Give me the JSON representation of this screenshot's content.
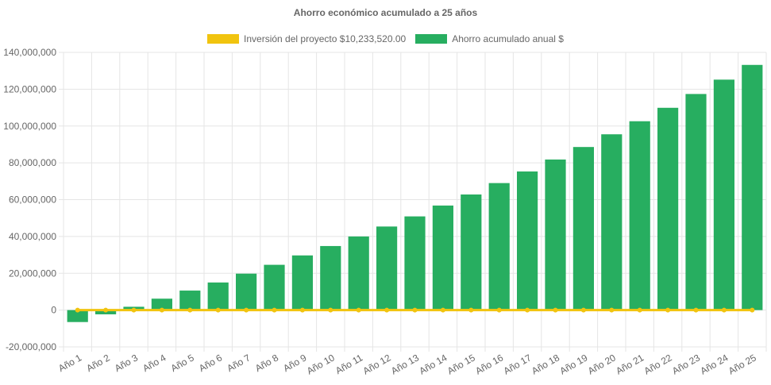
{
  "chart_data": {
    "type": "bar",
    "title": "Ahorro económico acumulado a 25 años",
    "categories": [
      "Año 1",
      "Año 2",
      "Año 3",
      "Año 4",
      "Año 5",
      "Año 6",
      "Año 7",
      "Año 8",
      "Año 9",
      "Año 10",
      "Año 11",
      "Año 12",
      "Año 13",
      "Año 14",
      "Año 15",
      "Año 16",
      "Año 17",
      "Año 18",
      "Año 19",
      "Año 20",
      "Año 21",
      "Año 22",
      "Año 23",
      "Año 24",
      "Año 25"
    ],
    "ylim": [
      -20000000,
      140000000
    ],
    "yticks": [
      140000000,
      120000000,
      100000000,
      80000000,
      60000000,
      40000000,
      20000000,
      0,
      -20000000
    ],
    "ytick_labels": [
      "140,000,000",
      "120,000,000",
      "100,000,000",
      "80,000,000",
      "60,000,000",
      "40,000,000",
      "20,000,000",
      "0",
      "-20,000,000"
    ],
    "grid": true,
    "legend_position": "top",
    "series": [
      {
        "name": "Inversión del proyecto $10,233,520.00",
        "type": "line",
        "color": "#f1c40f",
        "values": [
          0,
          0,
          0,
          0,
          0,
          0,
          0,
          0,
          0,
          0,
          0,
          0,
          0,
          0,
          0,
          0,
          0,
          0,
          0,
          0,
          0,
          0,
          0,
          0,
          0
        ]
      },
      {
        "name": "Ahorro acumulado anual $",
        "type": "bar",
        "color": "#27ae60",
        "values": [
          -6500000,
          -2300000,
          1800000,
          6200000,
          10600000,
          15000000,
          19800000,
          24600000,
          29700000,
          34800000,
          40000000,
          45400000,
          50900000,
          56800000,
          62800000,
          69000000,
          75300000,
          81800000,
          88600000,
          95500000,
          102600000,
          109900000,
          117400000,
          125200000,
          133200000
        ]
      }
    ]
  }
}
